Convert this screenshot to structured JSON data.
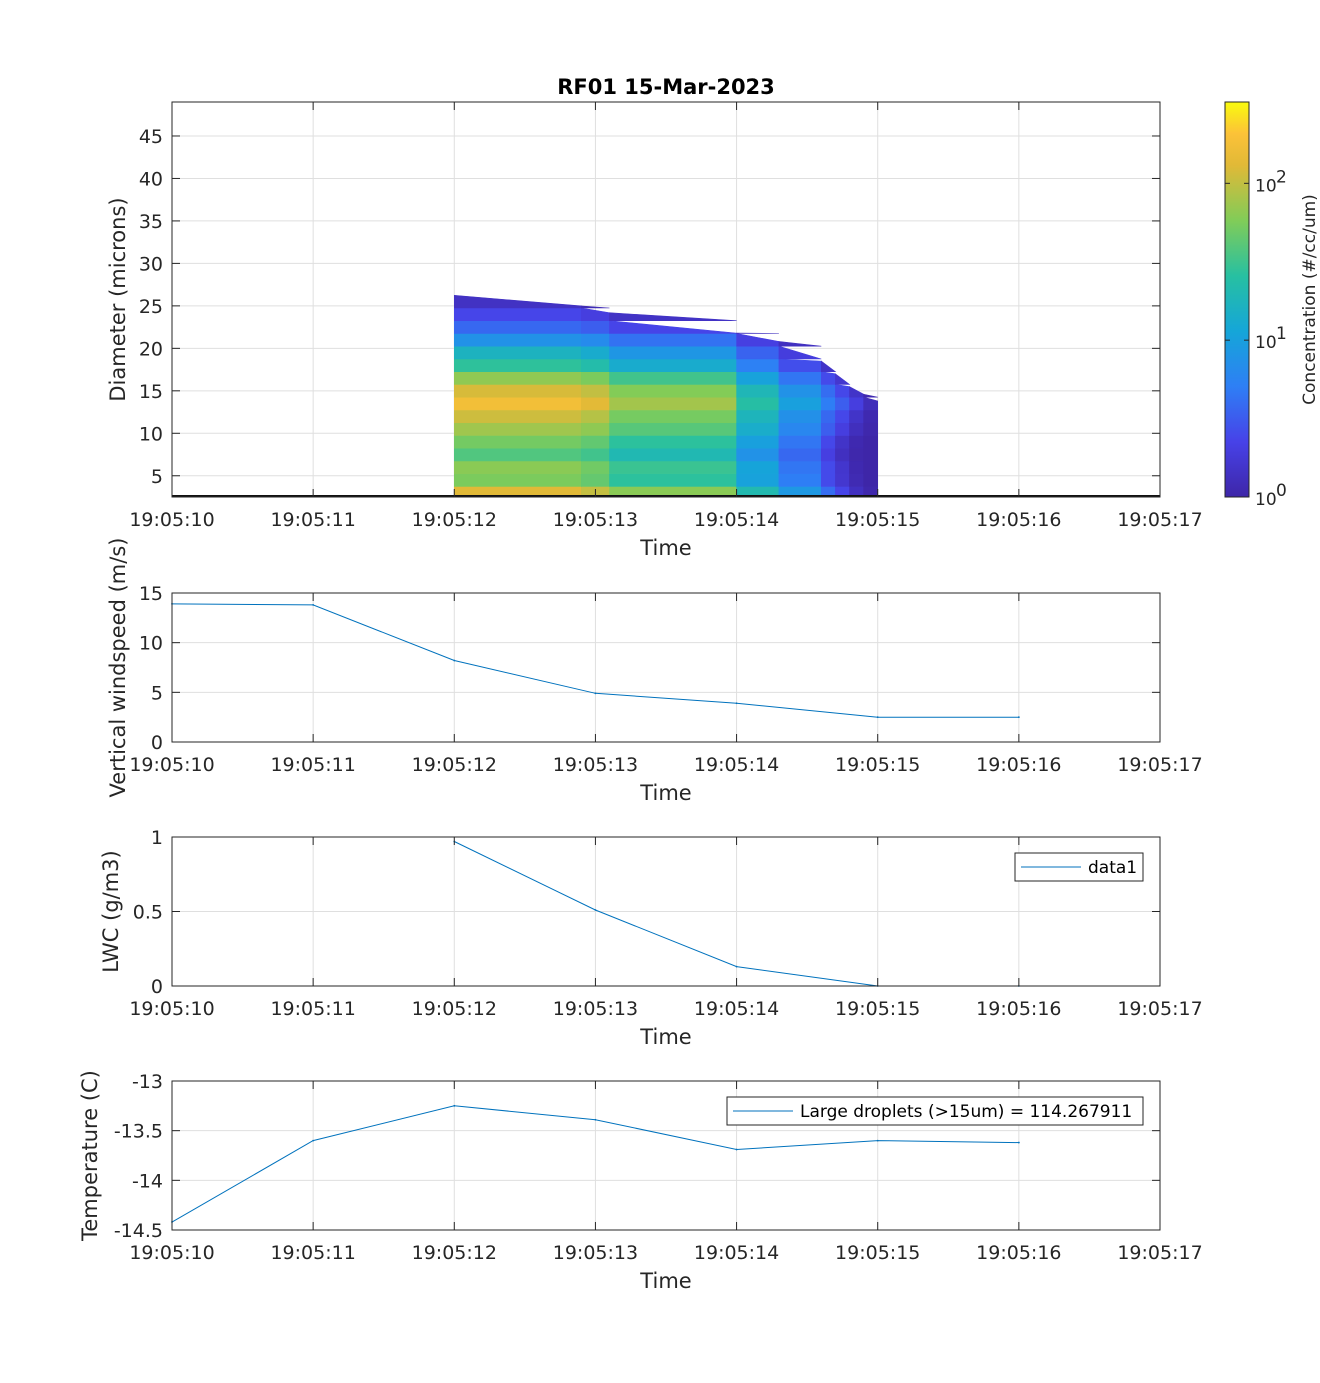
{
  "figure_title": "RF01 15-Mar-2023",
  "colors": {
    "line": "#0072bd",
    "axis": "#262626",
    "grid": "#dfdfdf"
  },
  "chart_data": [
    {
      "type": "heatmap",
      "title": "RF01 15-Mar-2023",
      "xlabel": "Time",
      "ylabel": "Diameter (microns)",
      "x_ticks": [
        "19:05:10",
        "19:05:11",
        "19:05:12",
        "19:05:13",
        "19:05:14",
        "19:05:15",
        "19:05:16",
        "19:05:17"
      ],
      "xlim": [
        0,
        7
      ],
      "ylim": [
        2.5,
        49
      ],
      "y_ticks": [
        5,
        10,
        15,
        20,
        25,
        30,
        35,
        40,
        45
      ],
      "colorscale": "parula",
      "colorbar": {
        "label": "Concentration (#/cc/um)",
        "scale": "log",
        "range": [
          1,
          330
        ],
        "ticks": [
          {
            "value": 1,
            "base": "10",
            "exp": "0"
          },
          {
            "value": 10,
            "base": "10",
            "exp": "1"
          },
          {
            "value": 100,
            "base": "10",
            "exp": "2"
          }
        ]
      },
      "diameters": [
        3,
        4.5,
        6,
        7.5,
        9,
        10.5,
        12,
        13.5,
        15,
        16.5,
        18,
        19.5,
        21,
        22.5,
        24,
        25.5
      ],
      "times": [
        2,
        2.9,
        3.1,
        4,
        4.3,
        4.6,
        4.7,
        4.8,
        4.9,
        5
      ],
      "top_edge_um": [
        26.3,
        25,
        24.2,
        21.8,
        20.8,
        18.5,
        17,
        15.5,
        14.6,
        13.8
      ],
      "concentration": [
        [
          150,
          110,
          95,
          30,
          12,
          5,
          3,
          1.6,
          1.1,
          1
        ],
        [
          60,
          50,
          40,
          14,
          7,
          3,
          2,
          1.3,
          1,
          1
        ],
        [
          70,
          55,
          45,
          16,
          6,
          3,
          2,
          1.2,
          1,
          1
        ],
        [
          40,
          35,
          30,
          10,
          5,
          2.5,
          1.6,
          1.1,
          1,
          1
        ],
        [
          55,
          48,
          40,
          14,
          6,
          3,
          1.8,
          1.2,
          1,
          1
        ],
        [
          80,
          70,
          60,
          20,
          8,
          4,
          2.5,
          1.5,
          1.1,
          1
        ],
        [
          120,
          100,
          80,
          25,
          10,
          4.5,
          3,
          1.8,
          1.2,
          1
        ],
        [
          200,
          150,
          120,
          35,
          14,
          6,
          4,
          2.5,
          1.5,
          1
        ],
        [
          130,
          110,
          90,
          28,
          10,
          5,
          3,
          1.8,
          1.2,
          1
        ],
        [
          70,
          60,
          50,
          15,
          6,
          3,
          2,
          1.3,
          1,
          1
        ],
        [
          30,
          25,
          20,
          7,
          3.5,
          1.8,
          1.2,
          1,
          1,
          1
        ],
        [
          18,
          15,
          12,
          4.5,
          2.5,
          1.4,
          1,
          1,
          1,
          1
        ],
        [
          8,
          7,
          6,
          2.5,
          1.6,
          1.1,
          1,
          1,
          1,
          1
        ],
        [
          4,
          3.5,
          3,
          1.6,
          1.1,
          1,
          1,
          1,
          1,
          1
        ],
        [
          2.5,
          2.2,
          1.8,
          1.1,
          1,
          1,
          1,
          1,
          1,
          1
        ],
        [
          1.5,
          1.3,
          1.1,
          1,
          1,
          1,
          1,
          1,
          1,
          1
        ]
      ]
    },
    {
      "type": "line",
      "xlabel": "Time",
      "ylabel": "Vertical windspeed (m/s)",
      "x_ticks": [
        "19:05:10",
        "19:05:11",
        "19:05:12",
        "19:05:13",
        "19:05:14",
        "19:05:15",
        "19:05:16",
        "19:05:17"
      ],
      "xlim": [
        0,
        7
      ],
      "ylim": [
        0,
        15
      ],
      "y_ticks": [
        0,
        5,
        10,
        15
      ],
      "series": [
        {
          "name": "vertical windspeed",
          "x": [
            0,
            1,
            2,
            3,
            4,
            5,
            6
          ],
          "y": [
            13.9,
            13.8,
            8.2,
            4.9,
            3.9,
            2.5,
            2.5
          ]
        }
      ]
    },
    {
      "type": "line",
      "xlabel": "Time",
      "ylabel": "LWC (g/m3)",
      "x_ticks": [
        "19:05:10",
        "19:05:11",
        "19:05:12",
        "19:05:13",
        "19:05:14",
        "19:05:15",
        "19:05:16",
        "19:05:17"
      ],
      "xlim": [
        0,
        7
      ],
      "ylim": [
        0,
        1
      ],
      "y_ticks": [
        0,
        0.5,
        1
      ],
      "legend": [
        "data1"
      ],
      "legend_position": "top-right",
      "series": [
        {
          "name": "data1",
          "x": [
            2,
            3,
            4,
            5,
            6
          ],
          "y": [
            0.97,
            0.51,
            0.13,
            0.0,
            0.0
          ]
        }
      ]
    },
    {
      "type": "line",
      "xlabel": "Time",
      "ylabel": "Temperature (C)",
      "x_ticks": [
        "19:05:10",
        "19:05:11",
        "19:05:12",
        "19:05:13",
        "19:05:14",
        "19:05:15",
        "19:05:16",
        "19:05:17"
      ],
      "xlim": [
        0,
        7
      ],
      "ylim": [
        -14.5,
        -13
      ],
      "y_ticks": [
        -14.5,
        -14,
        -13.5,
        -13
      ],
      "legend": [
        "Large droplets (>15um) = 114.267911"
      ],
      "legend_position": "top-right",
      "series": [
        {
          "name": "Large droplets (>15um) = 114.267911",
          "x": [
            0,
            1,
            2,
            3,
            4,
            5,
            6
          ],
          "y": [
            -14.42,
            -13.6,
            -13.25,
            -13.39,
            -13.69,
            -13.6,
            -13.62
          ]
        }
      ]
    }
  ]
}
